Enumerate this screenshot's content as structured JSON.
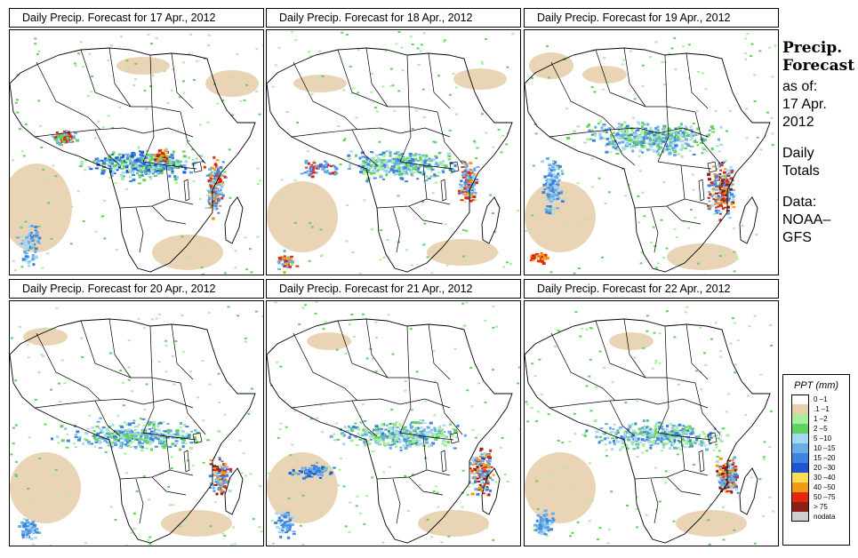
{
  "panels": [
    {
      "title": "Daily Precip. Forecast for  17 Apr., 2012"
    },
    {
      "title": "Daily Precip. Forecast for  18 Apr., 2012"
    },
    {
      "title": "Daily Precip. Forecast for  19 Apr., 2012"
    },
    {
      "title": "Daily Precip. Forecast for  20 Apr., 2012"
    },
    {
      "title": "Daily Precip. Forecast for  21 Apr., 2012"
    },
    {
      "title": "Daily Precip. Forecast for  22 Apr., 2012"
    }
  ],
  "sidebar": {
    "heading_line1": "Precip.",
    "heading_line2": "Forecast",
    "asof_label": "as of:",
    "date_line1": "17 Apr.",
    "date_line2": "2012",
    "daily_line1": "Daily",
    "daily_line2": "Totals",
    "data_line1": "Data:",
    "data_line2": "NOAA–",
    "data_line3": "GFS"
  },
  "legend": {
    "title": "PPT (mm)",
    "items": [
      {
        "label": "0 –1",
        "color": "#ffffff"
      },
      {
        "label": ".1 –1",
        "color": "#e8cfae"
      },
      {
        "label": "1 –2",
        "color": "#a8ee9e"
      },
      {
        "label": "2 –5",
        "color": "#5fd35a"
      },
      {
        "label": "5 –10",
        "color": "#a7d8f2"
      },
      {
        "label": "10 –15",
        "color": "#6aaee8"
      },
      {
        "label": "15 –20",
        "color": "#3d84e0"
      },
      {
        "label": "20 –30",
        "color": "#1d55d2"
      },
      {
        "label": "30 –40",
        "color": "#f8dd55"
      },
      {
        "label": "40 –50",
        "color": "#f29a15"
      },
      {
        "label": "50 –75",
        "color": "#e3260f"
      },
      {
        "label": "> 75",
        "color": "#8c1f1a"
      },
      {
        "label": "nodata",
        "color": "#cfcfcf"
      }
    ]
  }
}
